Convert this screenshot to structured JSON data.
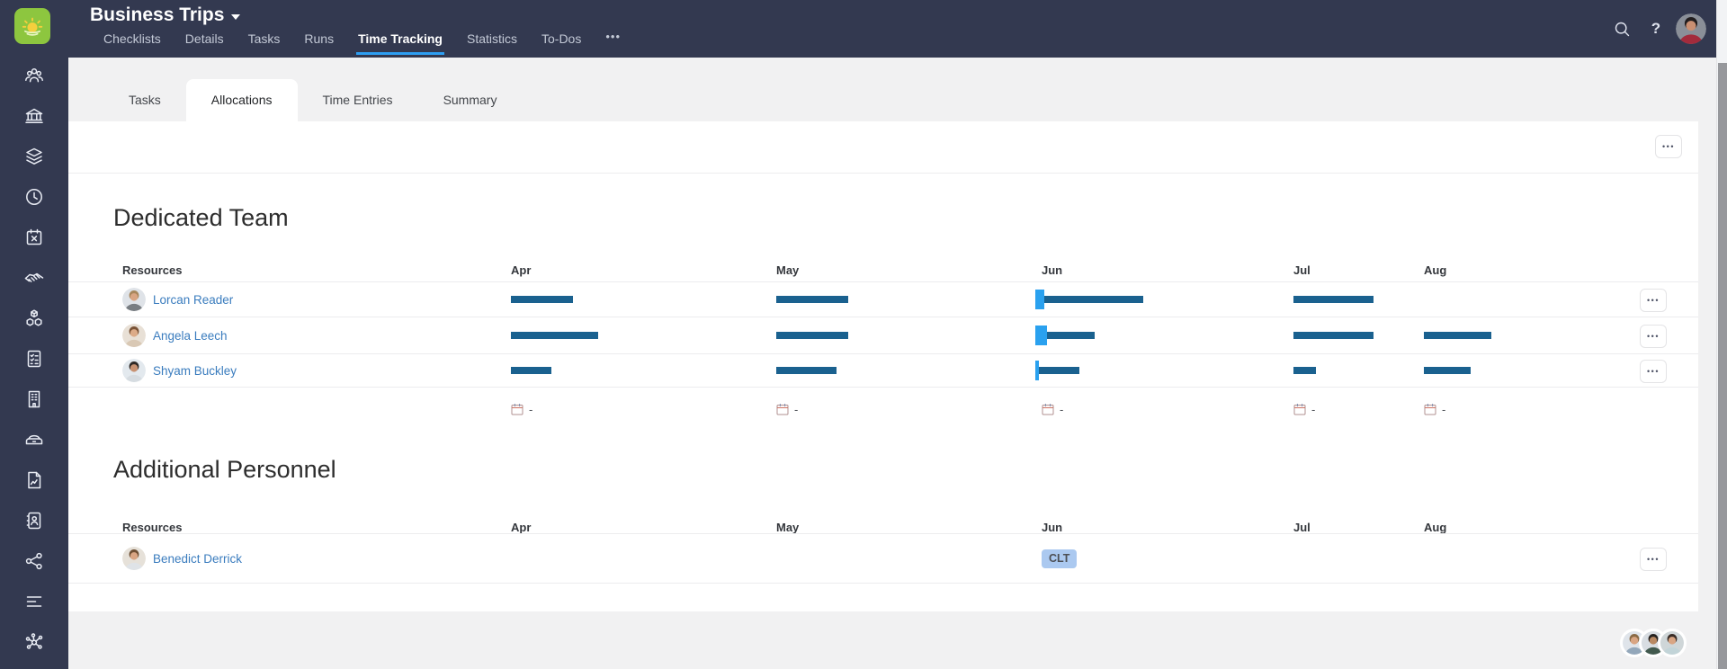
{
  "app": {
    "title": "Business Trips",
    "nav": [
      {
        "label": "Checklists",
        "active": false
      },
      {
        "label": "Details",
        "active": false
      },
      {
        "label": "Tasks",
        "active": false
      },
      {
        "label": "Runs",
        "active": false
      },
      {
        "label": "Time Tracking",
        "active": true
      },
      {
        "label": "Statistics",
        "active": false
      },
      {
        "label": "To-Dos",
        "active": false
      }
    ],
    "nav_more_label": "•••",
    "help_label": "?",
    "user_avatar": {
      "bg": "#8a8f98",
      "hair": "#211d1e",
      "shirt": "#a32b3c",
      "skin": "#c98f72"
    }
  },
  "sidebar": {
    "items": [
      "team",
      "bank",
      "layers",
      "clock",
      "calendar-cancel",
      "handshake",
      "modules",
      "checklist",
      "company",
      "car",
      "report",
      "contacts",
      "share",
      "logs",
      "integrations"
    ]
  },
  "subtabs": [
    {
      "label": "Tasks",
      "active": false
    },
    {
      "label": "Allocations",
      "active": true
    },
    {
      "label": "Time Entries",
      "active": false
    },
    {
      "label": "Summary",
      "active": false
    }
  ],
  "toolbar": {
    "more_label": "•••"
  },
  "row_more_label": "•••",
  "resources_label": "Resources",
  "months": [
    "Apr",
    "May",
    "Jun",
    "Jul",
    "Aug"
  ],
  "accent_colors": {
    "bar": "#1a618f",
    "today_marker": "#2aa1ef",
    "nav_underline": "#2d9ff3",
    "badge_bg": "#abc9f0"
  },
  "sections": [
    {
      "title": "Dedicated Team",
      "rows": [
        {
          "name": "Lorcan Reader",
          "avatar": {
            "bg": "#dfe3e8",
            "hair": "#a8875c",
            "shirt": "#787d82",
            "skin": "#d9a583"
          },
          "bars": {
            "apr": {
              "bar": 69
            },
            "may": {
              "bar": 80
            },
            "jun": {
              "marker": 10,
              "bar": 110
            },
            "jul": {
              "bar": 89
            },
            "aug": {
              "bar": 0
            }
          }
        },
        {
          "name": "Angela Leech",
          "avatar": {
            "bg": "#e8e0d6",
            "hair": "#7a5336",
            "shirt": "#d9c8b4",
            "skin": "#dcab88"
          },
          "bars": {
            "apr": {
              "bar": 97
            },
            "may": {
              "bar": 80
            },
            "jun": {
              "marker": 13,
              "bar": 53
            },
            "jul": {
              "bar": 89
            },
            "aug": {
              "bar": 75
            }
          }
        },
        {
          "name": "Shyam Buckley",
          "avatar": {
            "bg": "#e3e9ee",
            "hair": "#2e2926",
            "shirt": "#d6dce1",
            "skin": "#c89272"
          },
          "bars": {
            "apr": {
              "bar": 45
            },
            "may": {
              "bar": 67
            },
            "jun": {
              "marker": 4,
              "bar": 45
            },
            "jul": {
              "bar": 25
            },
            "aug": {
              "bar": 52
            }
          }
        }
      ],
      "totals": {
        "icon": "calendar-icon",
        "values": [
          "-",
          "-",
          "-",
          "-",
          "-"
        ]
      }
    },
    {
      "title": "Additional Personnel",
      "rows": [
        {
          "name": "Benedict Derrick",
          "avatar": {
            "bg": "#e6e1d9",
            "hair": "#6e4f33",
            "shirt": "#dfe3e7",
            "skin": "#d9a583"
          },
          "badge": {
            "month": "Jun",
            "label": "CLT"
          }
        }
      ]
    }
  ],
  "footer_presence": [
    {
      "bg": "#dfe4ea",
      "hair": "#8a6a45",
      "shirt": "#93a7ba",
      "skin": "#d9a583"
    },
    {
      "bg": "#d8dde2",
      "hair": "#25211f",
      "shirt": "#41594e",
      "skin": "#b98963"
    },
    {
      "bg": "#cfd6d8",
      "hair": "#3a2d27",
      "shirt": "#c2d4d8",
      "skin": "#d9a583"
    }
  ]
}
